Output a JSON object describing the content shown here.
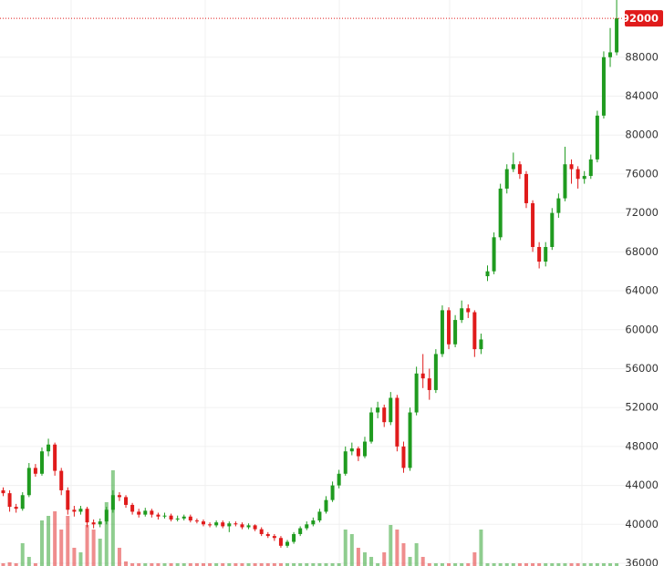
{
  "chart_data": {
    "type": "candlestick",
    "ylim": [
      35720,
      93880
    ],
    "yticks": [
      36000,
      40000,
      44000,
      48000,
      52000,
      56000,
      60000,
      64000,
      68000,
      72000,
      76000,
      80000,
      84000,
      88000
    ],
    "grid": true,
    "up_color": "#1f9b1f",
    "down_color": "#e01b1b",
    "last_price": 92000,
    "open": [
      43500,
      43200,
      41800,
      41600,
      43000,
      45800,
      45200,
      47500,
      48200,
      45500,
      43500,
      41500,
      41300,
      41600,
      40200,
      40000,
      40300,
      41500,
      43000,
      42800,
      42000,
      41300,
      41000,
      41400,
      41000,
      40800,
      40900,
      40500,
      40600,
      40800,
      40400,
      40300,
      40000,
      39900,
      40200,
      39800,
      40100,
      40000,
      39700,
      39900,
      39500,
      39000,
      38800,
      38600,
      37800,
      38200,
      39000,
      39600,
      40000,
      40400,
      41300,
      42500,
      44000,
      45200,
      47500,
      47800,
      47000,
      48500,
      51500,
      52000,
      50500,
      53000,
      48000,
      45800,
      51500,
      55500,
      55000,
      53800,
      57500,
      62000,
      58500,
      61000,
      62200,
      61800,
      58000,
      65500,
      66000,
      69500,
      74500,
      76500,
      77000,
      76000,
      73000,
      68500,
      67000,
      68500,
      72000,
      73500,
      77000,
      76500,
      75500,
      75800,
      77500,
      82000,
      88000,
      88500
    ],
    "high": [
      43800,
      43500,
      42100,
      43300,
      46300,
      46200,
      47900,
      48800,
      48400,
      45800,
      43800,
      41900,
      41900,
      41800,
      40500,
      40600,
      41800,
      43500,
      43300,
      43000,
      42200,
      41600,
      41700,
      41600,
      41200,
      41200,
      41100,
      40900,
      41000,
      41000,
      40600,
      40500,
      40200,
      40400,
      40400,
      40300,
      40300,
      40200,
      40100,
      40000,
      39700,
      39200,
      39000,
      38800,
      38400,
      39200,
      39800,
      40300,
      40700,
      41600,
      42900,
      44400,
      45600,
      48000,
      48400,
      48000,
      49000,
      52000,
      52600,
      52300,
      53600,
      53300,
      48500,
      52000,
      56200,
      57500,
      56000,
      58000,
      62500,
      62300,
      61500,
      63000,
      62600,
      62000,
      59600,
      66600,
      70000,
      75000,
      77000,
      78200,
      77300,
      76300,
      73300,
      69000,
      69000,
      72500,
      74000,
      78800,
      77500,
      76800,
      76300,
      78000,
      82500,
      88600,
      91000,
      94500
    ],
    "low": [
      42900,
      41300,
      41200,
      41400,
      42800,
      44900,
      45000,
      47000,
      45000,
      43000,
      41000,
      40800,
      41000,
      39700,
      39600,
      39700,
      40000,
      41200,
      42400,
      41700,
      41000,
      40700,
      40800,
      40700,
      40500,
      40600,
      40300,
      40300,
      40400,
      40200,
      40100,
      39800,
      39700,
      39700,
      39600,
      39200,
      39800,
      39500,
      39500,
      39300,
      38800,
      38600,
      38300,
      37600,
      37600,
      38000,
      38800,
      39400,
      39800,
      40200,
      41100,
      42300,
      43700,
      45000,
      47100,
      46500,
      46800,
      48300,
      50900,
      50000,
      50200,
      47500,
      45300,
      45500,
      51200,
      54000,
      52800,
      53500,
      57200,
      58000,
      58200,
      60700,
      61200,
      57200,
      57500,
      65000,
      65700,
      69200,
      74000,
      76200,
      75500,
      72500,
      68000,
      66300,
      66500,
      68200,
      71500,
      73200,
      75000,
      74500,
      75000,
      75500,
      77200,
      81700,
      87000,
      88200
    ],
    "close": [
      43200,
      41800,
      41600,
      43000,
      45800,
      45200,
      47500,
      48200,
      45500,
      43500,
      41500,
      41300,
      41600,
      40200,
      40000,
      40300,
      41500,
      43000,
      42800,
      42000,
      41300,
      41000,
      41400,
      41000,
      40800,
      40900,
      40500,
      40600,
      40800,
      40400,
      40300,
      40000,
      39900,
      40200,
      39800,
      40100,
      40000,
      39700,
      39900,
      39500,
      39000,
      38800,
      38600,
      37800,
      38200,
      39000,
      39600,
      40000,
      40400,
      41300,
      42500,
      44000,
      45200,
      47500,
      47800,
      47000,
      48500,
      51500,
      52000,
      50500,
      53000,
      48000,
      45800,
      51500,
      55500,
      55000,
      53800,
      57500,
      62000,
      58500,
      61000,
      62200,
      61800,
      58000,
      59000,
      66000,
      69500,
      74500,
      76500,
      77000,
      76000,
      73000,
      68500,
      67000,
      68500,
      72000,
      73500,
      77000,
      76500,
      75500,
      75800,
      77500,
      82000,
      88000,
      88500,
      92000
    ],
    "volume": [
      3,
      4,
      3,
      25,
      10,
      3,
      50,
      55,
      60,
      40,
      55,
      20,
      15,
      45,
      40,
      30,
      70,
      105,
      20,
      5,
      3,
      3,
      3,
      3,
      3,
      3,
      3,
      3,
      3,
      3,
      3,
      3,
      3,
      3,
      3,
      3,
      3,
      3,
      3,
      3,
      3,
      3,
      3,
      3,
      3,
      3,
      3,
      3,
      3,
      3,
      3,
      3,
      3,
      40,
      35,
      20,
      15,
      10,
      3,
      15,
      45,
      40,
      25,
      10,
      25,
      10,
      3,
      3,
      3,
      3,
      3,
      3,
      3,
      15,
      40,
      3,
      3,
      3,
      3,
      3,
      3,
      3,
      3,
      3,
      3,
      3,
      3,
      3,
      3,
      3,
      3,
      3,
      3,
      3,
      3,
      3
    ]
  }
}
